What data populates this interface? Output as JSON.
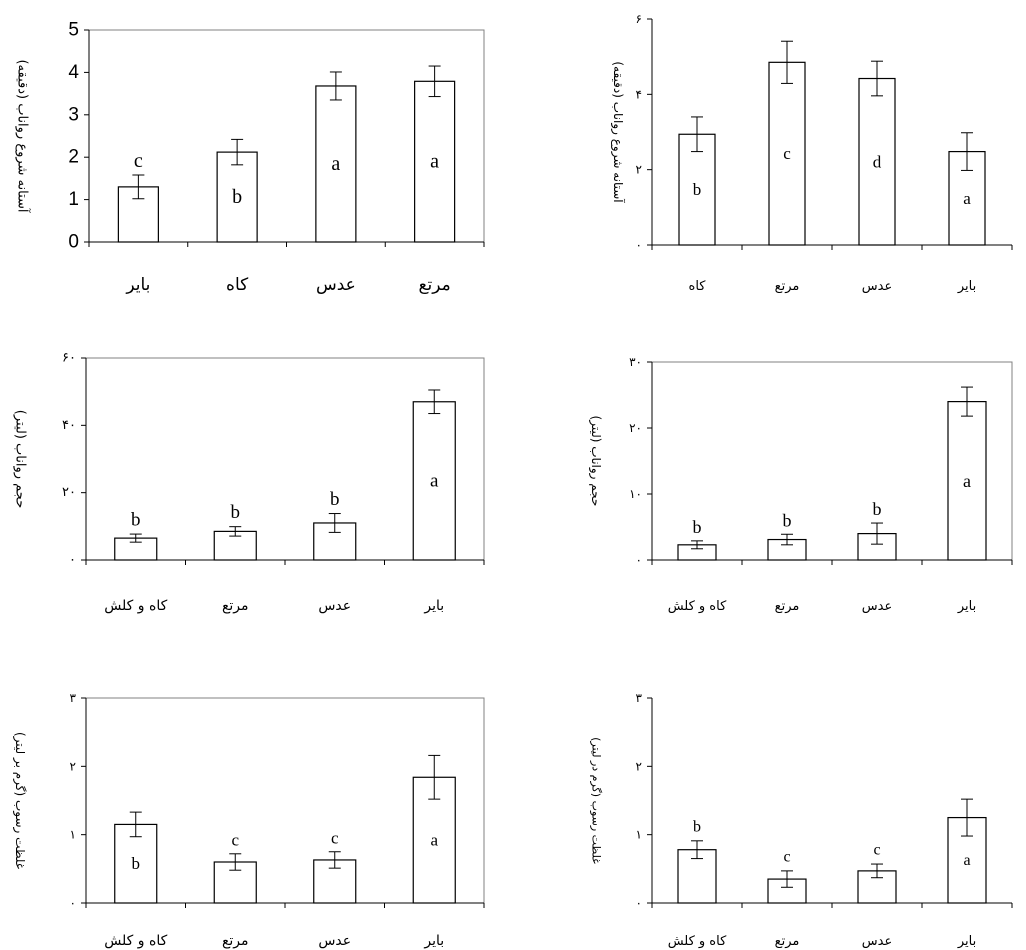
{
  "chart_data": [
    {
      "type": "bar",
      "categories": [
        "بایر",
        "کاه",
        "عدس",
        "مرتع"
      ],
      "values": [
        1.3,
        2.12,
        3.68,
        3.79
      ],
      "errors": [
        0.28,
        0.3,
        0.33,
        0.36
      ],
      "bar_labels": [
        "c",
        "b",
        "a",
        "a"
      ],
      "ylabel": "آستانه شروع رواناب (دقیقه)",
      "yticks": [
        "0",
        "1",
        "2",
        "3",
        "4",
        "5"
      ],
      "ylim": [
        0,
        5
      ],
      "frame": true,
      "grid": false
    },
    {
      "type": "bar",
      "categories": [
        "کاه",
        "مرتع",
        "عدس",
        "بایر"
      ],
      "values": [
        2.94,
        4.85,
        4.42,
        2.48
      ],
      "errors": [
        0.46,
        0.56,
        0.46,
        0.5
      ],
      "bar_labels": [
        "b",
        "c",
        "d",
        "a"
      ],
      "ylabel": "آستانه شروع رواناب (دقیقه)",
      "yticks": [
        "۰",
        "۲",
        "۴",
        "۶"
      ],
      "ylim": [
        0,
        6
      ],
      "frame": false,
      "grid": false
    },
    {
      "type": "bar",
      "categories": [
        "کاه و کلش",
        "مرتع",
        "عدس",
        "بایر"
      ],
      "values": [
        6.5,
        8.5,
        11,
        47
      ],
      "errors": [
        1.2,
        1.4,
        2.8,
        3.5
      ],
      "bar_labels": [
        "b",
        "b",
        "b",
        "a"
      ],
      "ylabel": "حجم رواناب (لیتر)",
      "yticks": [
        "۰",
        "۲۰",
        "۴۰",
        "۶۰"
      ],
      "ylim": [
        0,
        60
      ],
      "frame": true,
      "grid": false
    },
    {
      "type": "bar",
      "categories": [
        "کاه و کلش",
        "مرتع",
        "عدس",
        "بایر"
      ],
      "values": [
        2.3,
        3.1,
        4.0,
        24.0
      ],
      "errors": [
        0.6,
        0.8,
        1.6,
        2.2
      ],
      "bar_labels": [
        "b",
        "b",
        "b",
        "a"
      ],
      "ylabel": "حجم رواناب (لیتر)",
      "yticks": [
        "۰",
        "۱۰",
        "۲۰",
        "۳۰"
      ],
      "ylim": [
        0,
        30
      ],
      "frame": true,
      "grid": false
    },
    {
      "type": "bar",
      "categories": [
        "کاه و کلش",
        "مرتع",
        "عدس",
        "بایر"
      ],
      "values": [
        1.15,
        0.6,
        0.63,
        1.84
      ],
      "errors": [
        0.18,
        0.12,
        0.12,
        0.32
      ],
      "bar_labels": [
        "b",
        "c",
        "c",
        "a"
      ],
      "ylabel": "غلظت رسوب (گرم بر لیتر)",
      "yticks": [
        "۰",
        "۱",
        "۲",
        "۳"
      ],
      "ylim": [
        0,
        3
      ],
      "frame": true,
      "grid": false
    },
    {
      "type": "bar",
      "categories": [
        "کاه و کلش",
        "مرتع",
        "عدس",
        "بایر"
      ],
      "values": [
        0.78,
        0.35,
        0.47,
        1.25
      ],
      "errors": [
        0.13,
        0.12,
        0.1,
        0.27
      ],
      "bar_labels": [
        "b",
        "c",
        "c",
        "a"
      ],
      "ylabel": "غلظت رسوب (گرم در لیتر)",
      "yticks": [
        "۰",
        "۱",
        "۲",
        "۳"
      ],
      "ylim": [
        0,
        3
      ],
      "frame": false,
      "grid": false
    }
  ]
}
